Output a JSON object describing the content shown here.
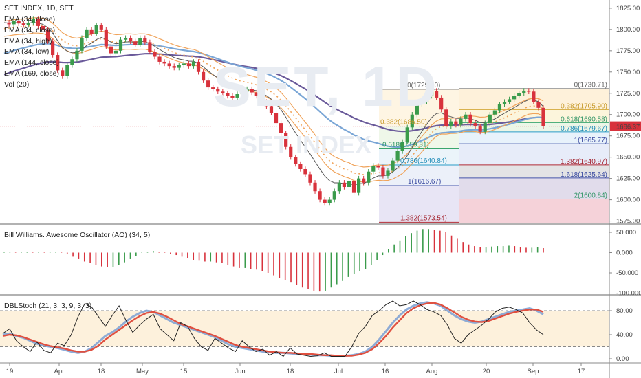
{
  "header": {
    "symbol": "SET INDEX, 1D, SET",
    "indicators": [
      "EMA (34, close)",
      "EMA (34, close)",
      "EMA (34, high)",
      "EMA (34, low)",
      "EMA (144, close)",
      "EMA (169, close)",
      "Vol (20)"
    ]
  },
  "watermark": {
    "big": "SET, 1D",
    "small": "SET INDEX"
  },
  "price_tag": "1686.37",
  "colors": {
    "up": "#3a9b4b",
    "down": "#d8323c",
    "ema_fast": "#555555",
    "ema_band": "#f0a35a",
    "ema_slow_blue": "#7aa6d6",
    "ema_slow_purple": "#6a5a9a",
    "stoch_fast": "#e05040",
    "stoch_slow": "#7a9fd4",
    "stoch_line": "#222222"
  },
  "chart_data": [
    {
      "type": "candlestick",
      "title": "SET INDEX, 1D, SET",
      "ylim": [
        1570,
        1830
      ],
      "y_ticks": [
        "1825.00",
        "1800.00",
        "1775.00",
        "1750.00",
        "1725.00",
        "1700.00",
        "1675.00",
        "1650.00",
        "1625.00",
        "1600.00",
        "1575.00"
      ],
      "x_ticks": [
        "19",
        "Apr",
        "18",
        "May",
        "15",
        "Jun",
        "18",
        "Jul",
        "16",
        "Aug",
        "20",
        "Sep",
        "17"
      ],
      "last_price": 1686.37,
      "close_path": [
        1808,
        1806,
        1810,
        1807,
        1805,
        1808,
        1812,
        1804,
        1800,
        1786,
        1770,
        1752,
        1745,
        1758,
        1765,
        1775,
        1790,
        1800,
        1795,
        1805,
        1800,
        1780,
        1772,
        1775,
        1788,
        1790,
        1786,
        1782,
        1790,
        1785,
        1774,
        1768,
        1762,
        1760,
        1757,
        1755,
        1758,
        1760,
        1757,
        1762,
        1750,
        1740,
        1732,
        1730,
        1727,
        1725,
        1722,
        1720,
        1724,
        1727,
        1730,
        1726,
        1722,
        1715,
        1710,
        1702,
        1690,
        1678,
        1662,
        1650,
        1642,
        1636,
        1630,
        1620,
        1610,
        1600,
        1596,
        1600,
        1610,
        1620,
        1615,
        1622,
        1608,
        1625,
        1620,
        1633,
        1640,
        1638,
        1628,
        1634,
        1646,
        1657,
        1668,
        1685,
        1700,
        1712,
        1715,
        1722,
        1728,
        1720,
        1706,
        1686,
        1692,
        1688,
        1695,
        1700,
        1690,
        1686,
        1680,
        1690,
        1700,
        1705,
        1712,
        1715,
        1718,
        1722,
        1725,
        1728,
        1727,
        1715,
        1708,
        1686.37
      ],
      "fib_left": [
        {
          "label": "0(1729.60)",
          "value": 1729.6
        },
        {
          "label": "0.382(1686.50)",
          "value": 1686.5
        },
        {
          "label": "0.618(1659.81)",
          "value": 1659.81
        },
        {
          "label": "0.786(1640.84)",
          "value": 1640.84
        },
        {
          "label": "1(1616.67)",
          "value": 1616.67
        },
        {
          "label": "1.382(1573.54)",
          "value": 1573.54
        }
      ],
      "fib_right": [
        {
          "label": "0(1730.71)",
          "value": 1730.71
        },
        {
          "label": "0.382(1705.90)",
          "value": 1705.9
        },
        {
          "label": "0.618(1690.58)",
          "value": 1690.58
        },
        {
          "label": "0.786(1679.67)",
          "value": 1679.67
        },
        {
          "label": "1(1665.77)",
          "value": 1665.77
        },
        {
          "label": "1.382(1640.97)",
          "value": 1640.97
        },
        {
          "label": "1.618(1625.64)",
          "value": 1625.64
        },
        {
          "label": "2(1600.84)",
          "value": 1600.84
        }
      ]
    },
    {
      "type": "histogram",
      "title": "Bill Williams. Awesome Oscillator (AO) (34, 5)",
      "ylim": [
        -100,
        60
      ],
      "y_ticks": [
        "50.000",
        "0.000",
        "-50.000",
        "-100.000"
      ],
      "values": [
        2,
        2,
        1,
        2,
        2,
        1,
        1,
        0,
        1,
        2,
        1,
        -4,
        -10,
        -16,
        -22,
        -26,
        -30,
        -34,
        -36,
        -36,
        -30,
        -24,
        -16,
        -8,
        -2,
        2,
        4,
        2,
        -2,
        -4,
        -6,
        -10,
        -14,
        -18,
        -20,
        -22,
        -22,
        -24,
        -26,
        -30,
        -34,
        -38,
        -38,
        -40,
        -42,
        -46,
        -50,
        -56,
        -62,
        -68,
        -74,
        -80,
        -86,
        -90,
        -94,
        -96,
        -94,
        -86,
        -78,
        -70,
        -60,
        -52,
        -46,
        -40,
        -30,
        -18,
        -6,
        8,
        20,
        30,
        40,
        48,
        54,
        58,
        58,
        56,
        54,
        50,
        42,
        34,
        26,
        20,
        16,
        14,
        14,
        15,
        16,
        16,
        17,
        16,
        14,
        12,
        12,
        13,
        11
      ]
    },
    {
      "type": "line",
      "title": "DBLStoch (21, 3, 3, 9, 3, 3)",
      "ylim": [
        0,
        100
      ],
      "y_ticks": [
        "80.00",
        "40.00",
        "0.00"
      ],
      "bands": [
        20,
        80
      ],
      "series": [
        {
          "values": [
            40,
            42,
            38,
            35,
            30,
            25,
            22,
            20,
            18,
            15,
            12,
            10,
            12,
            18,
            28,
            38,
            44,
            52,
            62,
            70,
            76,
            80,
            78,
            72,
            66,
            60,
            56,
            52,
            48,
            44,
            40,
            36,
            30,
            24,
            20,
            18,
            16,
            14,
            12,
            11,
            10,
            10,
            9,
            8,
            8,
            7,
            6,
            6,
            5,
            5,
            5,
            6,
            8,
            12,
            20,
            32,
            46,
            60,
            72,
            82,
            88,
            92,
            94,
            92,
            88,
            80,
            72,
            66,
            62,
            60,
            62,
            66,
            70,
            74,
            78,
            80,
            82,
            84,
            80,
            74
          ]
        },
        {
          "values": [
            38,
            40,
            39,
            36,
            32,
            28,
            24,
            21,
            19,
            17,
            14,
            12,
            12,
            15,
            22,
            32,
            40,
            48,
            56,
            64,
            71,
            76,
            78,
            75,
            70,
            64,
            58,
            54,
            50,
            46,
            42,
            38,
            33,
            28,
            23,
            20,
            18,
            16,
            14,
            12,
            11,
            10,
            10,
            9,
            8,
            8,
            7,
            6,
            6,
            5,
            5,
            5,
            7,
            10,
            16,
            26,
            38,
            52,
            64,
            76,
            84,
            89,
            92,
            93,
            90,
            84,
            77,
            70,
            65,
            62,
            61,
            63,
            67,
            71,
            75,
            78,
            80,
            82,
            82,
            78
          ]
        },
        {
          "values": [
            42,
            50,
            30,
            20,
            12,
            28,
            14,
            10,
            26,
            22,
            40,
            70,
            92,
            86,
            70,
            54,
            72,
            88,
            64,
            44,
            56,
            66,
            74,
            50,
            40,
            30,
            60,
            54,
            34,
            20,
            14,
            34,
            26,
            18,
            12,
            30,
            20,
            12,
            16,
            6,
            12,
            4,
            18,
            8,
            6,
            4,
            5,
            10,
            4,
            4,
            4,
            20,
            42,
            54,
            72,
            80,
            90,
            96,
            88,
            90,
            96,
            90,
            82,
            78,
            72,
            56,
            34,
            26,
            40,
            48,
            56,
            66,
            78,
            84,
            86,
            82,
            76,
            60,
            48,
            40
          ]
        }
      ],
      "x_ticks": [
        "19",
        "Apr",
        "18",
        "May",
        "15",
        "Jun",
        "18",
        "Jul",
        "16",
        "Aug",
        "20",
        "Sep",
        "17"
      ]
    }
  ]
}
